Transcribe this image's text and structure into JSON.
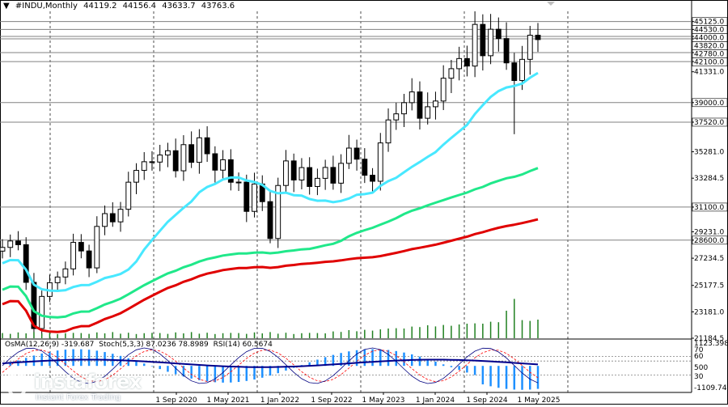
{
  "header": {
    "symbol": "#INDU,Monthly",
    "open": "44119.2",
    "high": "44156.4",
    "low": "43633.7",
    "close": "43763.6"
  },
  "price_axis": {
    "labels": [
      "45125.0",
      "44530.0",
      "44000.0",
      "43820.0",
      "42780.0",
      "42100.0",
      "41331.0",
      "39000.0",
      "37520.0",
      "35281.0",
      "33284.5",
      "31100.0",
      "29231.0",
      "28600.0",
      "27234.5",
      "25177.5",
      "23181.0",
      "21184.5"
    ]
  },
  "indicator": {
    "osma_label": "OsMA(12,26,9) -319.687",
    "stoch_label": "Stoch(5,3,3) 87.0236 78.8989",
    "rsi_label": "RSI(14) 60.5674",
    "axis_labels": [
      "1123.398",
      "70",
      "60",
      "500",
      "30",
      "-1109.741"
    ]
  },
  "time_axis": {
    "labels": [
      "1 Sep 2020",
      "1 May 2021",
      "1 Jan 2022",
      "1 Sep 2022",
      "1 May 2023",
      "1 Jan 2024",
      "1 Sep 2024",
      "1 May 2025"
    ]
  },
  "watermark": {
    "brand": "instaforex",
    "tagline": "Instant Forex Trading"
  },
  "colors": {
    "candle": "#000000",
    "ma_fast": "#48e8ff",
    "ma_mid": "#20e88a",
    "ma_slow": "#e00000",
    "volume": "#208020",
    "osma": "#1e90ff",
    "stoch_main": "#000080",
    "stoch_signal": "#ff0000",
    "level_line": "#808080"
  },
  "chart_data": {
    "type": "candlestick",
    "symbol": "#INDU",
    "timeframe": "Monthly",
    "x": [
      "2019-11",
      "2019-12",
      "2020-01",
      "2020-02",
      "2020-03",
      "2020-04",
      "2020-05",
      "2020-06",
      "2020-07",
      "2020-08",
      "2020-09",
      "2020-10",
      "2020-11",
      "2020-12",
      "2021-01",
      "2021-02",
      "2021-03",
      "2021-04",
      "2021-05",
      "2021-06",
      "2021-07",
      "2021-08",
      "2021-09",
      "2021-10",
      "2021-11",
      "2021-12",
      "2022-01",
      "2022-02",
      "2022-03",
      "2022-04",
      "2022-05",
      "2022-06",
      "2022-07",
      "2022-08",
      "2022-09",
      "2022-10",
      "2022-11",
      "2022-12",
      "2023-01",
      "2023-02",
      "2023-03",
      "2023-04",
      "2023-05",
      "2023-06",
      "2023-07",
      "2023-08",
      "2023-09",
      "2023-10",
      "2023-11",
      "2023-12",
      "2024-01",
      "2024-02",
      "2024-03",
      "2024-04",
      "2024-05",
      "2024-06",
      "2024-07",
      "2024-08",
      "2024-09",
      "2024-10",
      "2024-11",
      "2024-12",
      "2025-01",
      "2025-02",
      "2025-03",
      "2025-04",
      "2025-05",
      "2025-06",
      "2025-07"
    ],
    "close": [
      28051,
      28538,
      28256,
      25409,
      21917,
      24345,
      25383,
      25813,
      26428,
      28430,
      27782,
      26502,
      29638,
      30606,
      29983,
      30932,
      32982,
      33875,
      34529,
      34503,
      35035,
      35361,
      33844,
      35820,
      34484,
      36338,
      35132,
      33893,
      34678,
      32977,
      32990,
      30775,
      32845,
      31510,
      28726,
      32733,
      34590,
      33147,
      34086,
      32657,
      33274,
      34098,
      32908,
      34408,
      35560,
      34722,
      33508,
      33053,
      35951,
      37690,
      38150,
      38996,
      39807,
      37816,
      38686,
      39119,
      40843,
      41563,
      42330,
      41763,
      44911,
      42544,
      44545,
      43841,
      42002,
      40669,
      42270,
      44095,
      43764
    ],
    "overlay_lines": [
      "ma_fast",
      "ma_mid",
      "ma_slow"
    ],
    "horizontal_levels": [
      45125.0,
      44530.0,
      44000.0,
      43820.0,
      42780.0,
      42100.0,
      39000.0,
      37520.0,
      31100.0,
      28600.0
    ],
    "ylim": [
      21184.5,
      45900
    ],
    "x_tick_labels": [
      "1 Sep 2020",
      "1 May 2021",
      "1 Jan 2022",
      "1 Sep 2022",
      "1 May 2023",
      "1 Jan 2024",
      "1 Sep 2024",
      "1 May 2025"
    ],
    "indicator": {
      "osma": -319.687,
      "stoch_main": 87.0236,
      "stoch_signal": 78.8989,
      "rsi": 60.5674,
      "levels": [
        70,
        60,
        30
      ],
      "range": [
        -1109.741,
        1123.398
      ]
    }
  }
}
